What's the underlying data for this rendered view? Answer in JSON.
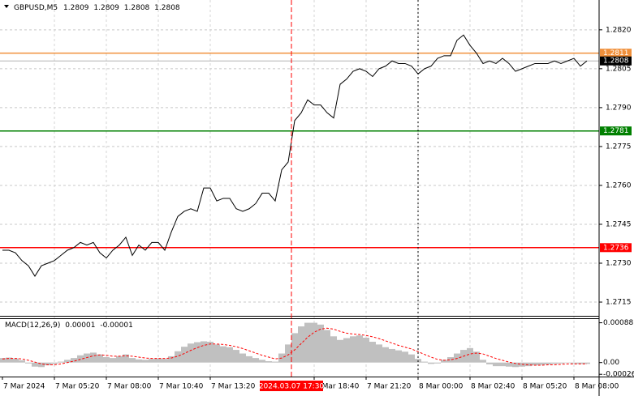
{
  "chart_data": [
    {
      "type": "line",
      "title": "GBPUSD,M5",
      "ohlc": [
        1.2809,
        1.2809,
        1.2808,
        1.2808
      ],
      "categories": [
        "7 Mar 2024",
        null,
        null,
        null,
        null,
        null,
        null,
        null,
        "7 Mar 05:20",
        null,
        null,
        null,
        null,
        null,
        null,
        null,
        "7 Mar 08:00",
        null,
        null,
        null,
        null,
        null,
        null,
        null,
        "7 Mar 10:40",
        null,
        null,
        null,
        null,
        null,
        null,
        null,
        "7 Mar 13:20",
        null,
        null,
        null,
        null,
        null,
        null,
        null,
        null,
        null,
        null,
        null,
        null,
        null,
        null,
        null,
        "7 Mar 18:40",
        null,
        null,
        null,
        null,
        null,
        null,
        null,
        "7 Mar 21:20",
        null,
        null,
        null,
        null,
        null,
        null,
        null,
        "8 Mar 00:00",
        null,
        null,
        null,
        null,
        null,
        null,
        null,
        "8 Mar 02:40",
        null,
        null,
        null,
        null,
        null,
        null,
        null,
        "8 Mar 05:20",
        null,
        null,
        null,
        null,
        null,
        null,
        null,
        "8 Mar 08:00",
        null,
        null
      ],
      "values": [
        1.2735,
        1.2735,
        1.2734,
        1.2731,
        1.2729,
        1.2725,
        1.2729,
        1.273,
        1.2731,
        1.2733,
        1.2735,
        1.2736,
        1.2738,
        1.2737,
        1.2738,
        1.2734,
        1.2732,
        1.2735,
        1.2737,
        1.274,
        1.2733,
        1.2737,
        1.2735,
        1.2738,
        1.2738,
        1.2735,
        1.2742,
        1.2748,
        1.275,
        1.2751,
        1.275,
        1.2759,
        1.2759,
        1.2754,
        1.2755,
        1.2755,
        1.2751,
        1.275,
        1.2751,
        1.2753,
        1.2757,
        1.2757,
        1.2754,
        1.2766,
        1.2769,
        1.2785,
        1.2788,
        1.2793,
        1.2791,
        1.2791,
        1.2788,
        1.2786,
        1.2799,
        1.2801,
        1.2804,
        1.2805,
        1.2804,
        1.2802,
        1.2805,
        1.2806,
        1.2808,
        1.2807,
        1.2807,
        1.2806,
        1.2803,
        1.2805,
        1.2806,
        1.2809,
        1.281,
        1.281,
        1.2816,
        1.2818,
        1.2814,
        1.2811,
        1.2807,
        1.2808,
        1.2807,
        1.2809,
        1.2807,
        1.2804,
        1.2805,
        1.2806,
        1.2807,
        1.2807,
        1.2807,
        1.2808,
        1.2807,
        1.2808,
        1.2809,
        1.2806,
        1.2808
      ],
      "color": "#000000",
      "ylim": [
        1.27097,
        1.28315
      ],
      "yticks": [
        {
          "value": 1.282,
          "label": "1.2820"
        },
        1.2805,
        {
          "value": 1.279,
          "label": "1.2790"
        },
        1.2775,
        {
          "value": 1.276,
          "label": "1.2760"
        },
        1.2745,
        {
          "value": 1.273,
          "label": "1.2730"
        },
        1.2715
      ],
      "grid": true,
      "levels": [
        {
          "value": 1.2811,
          "color": "#f0903c"
        },
        {
          "value": 1.2781,
          "color": "#008000"
        },
        {
          "value": 1.2736,
          "color": "#ff0000"
        }
      ],
      "last_price": {
        "value": 1.2808,
        "color": "#000000"
      },
      "cursor_label": "2024.03.07 17:30"
    },
    {
      "type": "macd",
      "title": "MACD(12,26,9)",
      "readout": [
        1e-05,
        -1e-05
      ],
      "series": [
        {
          "style": "histogram",
          "color": "#c0c0c0",
          "values": [
            0.0001,
            0.00011,
            9e-05,
            5e-05,
            -2e-05,
            -9e-05,
            -0.0001,
            -6e-05,
            -3e-05,
            2e-05,
            6e-05,
            0.0001,
            0.00016,
            0.0002,
            0.00022,
            0.00018,
            0.00012,
            0.0001,
            0.00014,
            0.00018,
            0.0001,
            7e-05,
            6e-05,
            8e-05,
            9e-05,
            8e-05,
            0.00014,
            0.00025,
            0.00035,
            0.00042,
            0.00045,
            0.00047,
            0.00046,
            0.0004,
            0.00036,
            0.00034,
            0.00028,
            0.0002,
            0.00014,
            0.0001,
            6e-05,
            3e-05,
            2e-05,
            0.0002,
            0.0004,
            0.00065,
            0.0008,
            0.00088,
            0.00088,
            0.00084,
            0.00072,
            0.00058,
            0.0005,
            0.00054,
            0.00058,
            0.0006,
            0.00055,
            0.00046,
            0.0004,
            0.00034,
            0.0003,
            0.00027,
            0.00024,
            0.00018,
            8e-05,
            2e-05,
            -3e-05,
            -2e-05,
            6e-05,
            0.00012,
            0.0002,
            0.00028,
            0.00032,
            0.00024,
            6e-05,
            -4e-05,
            -8e-05,
            -8e-05,
            -9e-05,
            -0.0001,
            -9e-05,
            -8e-05,
            -6e-05,
            -5e-05,
            -4e-05,
            -3e-05,
            -2e-05,
            -1e-05,
            -2e-05,
            -3e-05,
            -3e-05
          ]
        },
        {
          "style": "dashed",
          "color": "#ff0000",
          "values": [
            8e-05,
            9e-05,
            9e-05,
            8e-05,
            5e-05,
            1e-05,
            -3e-05,
            -5e-05,
            -5e-05,
            -3e-05,
            0,
            3e-05,
            7e-05,
            0.00011,
            0.00015,
            0.00017,
            0.00016,
            0.00014,
            0.00014,
            0.00015,
            0.00014,
            0.00012,
            0.0001,
            9e-05,
            9e-05,
            9e-05,
            0.0001,
            0.00014,
            0.0002,
            0.00027,
            0.00033,
            0.00038,
            0.00041,
            0.00041,
            0.0004,
            0.00038,
            0.00035,
            0.00031,
            0.00026,
            0.00021,
            0.00016,
            0.00012,
            8e-05,
            0.0001,
            0.00017,
            0.00028,
            0.00042,
            0.00056,
            0.00067,
            0.00074,
            0.00076,
            0.00074,
            0.00069,
            0.00065,
            0.00063,
            0.00062,
            0.0006,
            0.00057,
            0.00053,
            0.00048,
            0.00043,
            0.00038,
            0.00034,
            0.0003,
            0.00024,
            0.00018,
            0.00012,
            7e-05,
            5e-05,
            6e-05,
            9e-05,
            0.00014,
            0.00019,
            0.00021,
            0.00019,
            0.00014,
            9e-05,
            5e-05,
            1e-05,
            -2e-05,
            -4e-05,
            -5e-05,
            -6e-05,
            -6e-05,
            -5e-05,
            -5e-05,
            -4e-05,
            -3e-05,
            -3e-05,
            -3e-05,
            -3e-05
          ]
        }
      ],
      "ylim": [
        -0.00031,
        0.00098
      ],
      "yticks": [
        0.00088,
        {
          "value": 0,
          "label": "0.00"
        },
        -0.00026
      ]
    }
  ]
}
